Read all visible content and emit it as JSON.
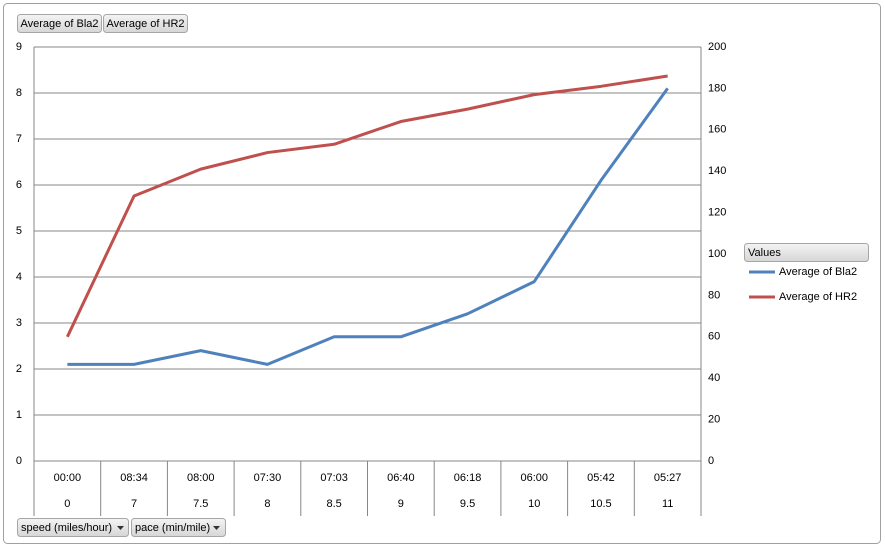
{
  "chart_data": {
    "type": "line",
    "categories": [
      "00:00",
      "08:34",
      "08:00",
      "07:30",
      "07:03",
      "06:40",
      "06:18",
      "06:00",
      "05:42",
      "05:27"
    ],
    "categories_outer": [
      "0",
      "7",
      "7.5",
      "8",
      "8.5",
      "9",
      "9.5",
      "10",
      "10.5",
      "11"
    ],
    "series": [
      {
        "name": "Average of Bla2",
        "color": "#4f81bd",
        "values": [
          2.1,
          2.1,
          2.4,
          2.1,
          2.7,
          2.7,
          3.2,
          3.9,
          6.1,
          8.1
        ]
      },
      {
        "name": "Average of HR2",
        "color": "#c0504d",
        "axis": "y2",
        "values": [
          60,
          128,
          141,
          149,
          153,
          164,
          170,
          177,
          181,
          186
        ]
      }
    ],
    "ylim": [
      0,
      9
    ],
    "yticks": [
      0,
      1,
      2,
      3,
      4,
      5,
      6,
      7,
      8,
      9
    ],
    "y2lim": [
      0,
      200
    ],
    "y2ticks": [
      0,
      20,
      40,
      60,
      80,
      100,
      120,
      140,
      160,
      180,
      200
    ],
    "grid": true,
    "legend_title": "Values",
    "x_fields": [
      "speed (miles/hour)",
      "pace (min/mile)"
    ]
  }
}
